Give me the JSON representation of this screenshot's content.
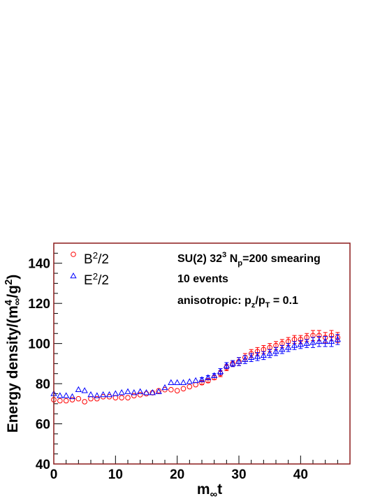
{
  "chart_data": {
    "type": "scatter",
    "title": "",
    "xlabel": "m",
    "xlabel_sub": "∞",
    "xlabel_suffix": "t",
    "ylabel_parts": [
      "Energy density/(m",
      "4",
      "∞",
      "/g",
      "2",
      ")"
    ],
    "xlim": [
      0,
      48
    ],
    "ylim": [
      40,
      150
    ],
    "xticks": [
      0,
      10,
      20,
      30,
      40
    ],
    "yticks": [
      40,
      60,
      80,
      100,
      120,
      140
    ],
    "grid": false,
    "legend_position": "top-left",
    "frame_color": "#8b1a1a",
    "annotations": [
      {
        "id": "title",
        "parts": [
          [
            "SU(2) 32",
            ""
          ],
          [
            "3",
            "sup"
          ],
          [
            " N",
            ""
          ],
          [
            "p",
            "sub"
          ],
          [
            "=200 smearing",
            ""
          ]
        ]
      },
      {
        "id": "events",
        "parts": [
          [
            "10 events",
            ""
          ]
        ]
      },
      {
        "id": "anisotropy",
        "parts": [
          [
            "anisotropic: p",
            ""
          ],
          [
            "z",
            "sub"
          ],
          [
            "/p",
            ""
          ],
          [
            "T",
            "sub"
          ],
          [
            " = 0.1",
            ""
          ]
        ]
      }
    ],
    "series": [
      {
        "name_parts": [
          [
            "B",
            ""
          ],
          [
            "2",
            "sup"
          ],
          [
            "/2",
            ""
          ]
        ],
        "marker": "circle",
        "color": "#ff0000",
        "x": [
          0,
          1,
          2,
          3,
          4,
          5,
          6,
          7,
          8,
          9,
          10,
          11,
          12,
          13,
          14,
          15,
          16,
          17,
          18,
          19,
          20,
          21,
          22,
          23,
          24,
          25,
          26,
          27,
          28,
          29,
          30,
          31,
          32,
          33,
          34,
          35,
          36,
          37,
          38,
          39,
          40,
          41,
          42,
          43,
          44,
          45,
          46
        ],
        "y": [
          72,
          71.5,
          71.5,
          72,
          72.5,
          71,
          72.5,
          72.5,
          73.5,
          73.5,
          73,
          73,
          73,
          74,
          74.5,
          75,
          75.5,
          76.5,
          77,
          77,
          76.5,
          77.5,
          78.5,
          79.5,
          80.5,
          81.5,
          83,
          85,
          88,
          90,
          91,
          93,
          95,
          96,
          97,
          98,
          99,
          100,
          101,
          102,
          102,
          103,
          104,
          104,
          103,
          104,
          103
        ],
        "err": [
          0.5,
          0.5,
          0.5,
          0.5,
          0.5,
          0.5,
          0.5,
          0.5,
          0.5,
          0.5,
          0.5,
          0.5,
          0.5,
          0.5,
          0.5,
          0.5,
          0.5,
          0.5,
          0.5,
          0.5,
          0.5,
          0.5,
          0.5,
          0.5,
          1,
          1,
          1,
          1.5,
          1.5,
          1.5,
          2,
          2,
          2,
          2,
          2,
          2,
          2,
          2,
          2,
          2,
          2,
          2,
          2.5,
          2.5,
          2.5,
          2.5,
          2.5
        ]
      },
      {
        "name_parts": [
          [
            "E",
            ""
          ],
          [
            "2",
            "sup"
          ],
          [
            "/2",
            ""
          ]
        ],
        "marker": "triangle",
        "color": "#0000ff",
        "x": [
          0,
          1,
          2,
          3,
          4,
          5,
          6,
          7,
          8,
          9,
          10,
          11,
          12,
          13,
          14,
          15,
          16,
          17,
          18,
          19,
          20,
          21,
          22,
          23,
          24,
          25,
          26,
          27,
          28,
          29,
          30,
          31,
          32,
          33,
          34,
          35,
          36,
          37,
          38,
          39,
          40,
          41,
          42,
          43,
          44,
          45,
          46
        ],
        "y": [
          75,
          74,
          74,
          73.5,
          77,
          76.5,
          74.5,
          74,
          74.5,
          74.5,
          75,
          75.5,
          76,
          75.5,
          76,
          75.5,
          75.5,
          76,
          78,
          80.5,
          80.5,
          80.5,
          81,
          81.5,
          82,
          83,
          84,
          86,
          89,
          90,
          91,
          92,
          93,
          93.5,
          94,
          95,
          96,
          97,
          98,
          99,
          99.5,
          100,
          100.5,
          101,
          101,
          101,
          102
        ],
        "err": [
          0.5,
          0.5,
          0.5,
          0.5,
          0.5,
          0.5,
          0.5,
          0.5,
          0.5,
          0.5,
          0.5,
          0.5,
          0.5,
          0.5,
          0.5,
          0.5,
          0.5,
          0.5,
          0.5,
          0.5,
          0.5,
          0.5,
          0.5,
          0.5,
          1,
          1,
          1,
          1.5,
          1.5,
          1.5,
          2,
          2,
          2,
          2,
          2,
          2,
          2,
          2,
          2,
          2,
          2,
          2,
          2.5,
          2.5,
          2.5,
          2.5,
          2.5
        ]
      }
    ]
  }
}
